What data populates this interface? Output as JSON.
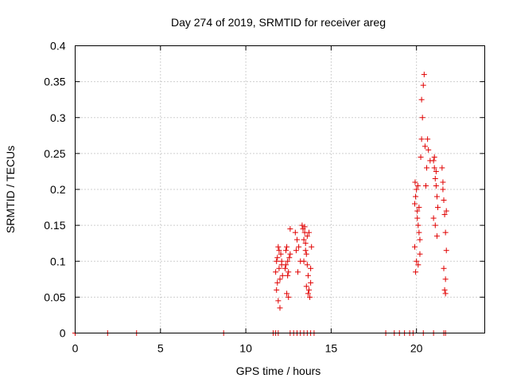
{
  "chart_data": {
    "type": "scatter",
    "title": "Day 274 of 2019, SRMTID for receiver areg",
    "xlabel": "GPS time / hours",
    "ylabel": "SRMTID / TECUs",
    "xlim": [
      0,
      24
    ],
    "ylim": [
      0,
      0.4
    ],
    "x_ticks": [
      0,
      5,
      10,
      15,
      20
    ],
    "x_tick_labels": [
      "0",
      "5",
      "10",
      "15",
      "20"
    ],
    "y_ticks": [
      0,
      0.05,
      0.1,
      0.15,
      0.2,
      0.25,
      0.3,
      0.35,
      0.4
    ],
    "y_tick_labels": [
      "0",
      "0.05",
      "0.1",
      "0.15",
      "0.2",
      "0.25",
      "0.3",
      "0.35",
      "0.4"
    ],
    "grid": true,
    "marker": "+",
    "color": "#e00000",
    "series": [
      {
        "name": "SRMTID",
        "x": [
          0.0,
          1.9,
          3.6,
          8.7,
          11.6,
          11.75,
          11.9,
          12.6,
          12.8,
          13.0,
          13.2,
          13.4,
          13.6,
          13.8,
          14.0,
          18.2,
          18.7,
          19.0,
          19.3,
          19.6,
          19.8,
          20.4,
          21.0,
          21.6,
          21.7,
          11.75,
          11.8,
          11.85,
          11.9,
          11.95,
          12.0,
          12.05,
          12.1,
          12.15,
          11.8,
          11.9,
          12.0,
          11.85,
          11.95,
          12.1,
          12.3,
          12.35,
          12.4,
          12.45,
          12.5,
          12.55,
          12.6,
          12.4,
          12.5,
          12.45,
          12.35,
          12.6,
          12.9,
          13.0,
          13.1,
          13.2,
          13.05,
          12.95,
          13.3,
          13.35,
          13.4,
          13.45,
          13.5,
          13.55,
          13.6,
          13.65,
          13.7,
          13.75,
          13.8,
          13.85,
          13.4,
          13.5,
          13.6,
          13.7,
          13.8,
          13.55,
          13.65,
          13.45,
          19.9,
          19.95,
          20.0,
          20.05,
          20.1,
          20.15,
          19.9,
          20.0,
          20.1,
          20.2,
          19.95,
          20.05,
          20.15,
          20.2,
          19.92,
          20.08,
          20.25,
          20.3,
          20.35,
          20.3,
          20.4,
          20.45,
          20.5,
          20.6,
          20.55,
          20.7,
          20.8,
          20.65,
          21.0,
          21.05,
          21.1,
          21.15,
          21.2,
          21.25,
          21.0,
          21.1,
          21.2,
          21.05,
          21.15,
          21.5,
          21.55,
          21.6,
          21.65,
          21.7,
          21.75,
          21.6,
          21.7,
          21.65,
          21.55,
          21.75,
          21.7
        ],
        "y": [
          0,
          0,
          0,
          0,
          0,
          0,
          0,
          0,
          0,
          0,
          0,
          0,
          0,
          0,
          0,
          0,
          0,
          0,
          0,
          0,
          0,
          0,
          0,
          0,
          0,
          0.085,
          0.1,
          0.07,
          0.12,
          0.09,
          0.075,
          0.11,
          0.095,
          0.08,
          0.06,
          0.045,
          0.035,
          0.105,
          0.115,
          0.1,
          0.09,
          0.115,
          0.12,
          0.1,
          0.085,
          0.105,
          0.145,
          0.055,
          0.05,
          0.08,
          0.095,
          0.11,
          0.14,
          0.13,
          0.12,
          0.1,
          0.085,
          0.115,
          0.15,
          0.145,
          0.13,
          0.14,
          0.125,
          0.11,
          0.095,
          0.08,
          0.06,
          0.05,
          0.07,
          0.12,
          0.1,
          0.115,
          0.135,
          0.14,
          0.09,
          0.065,
          0.055,
          0.148,
          0.18,
          0.19,
          0.2,
          0.16,
          0.15,
          0.14,
          0.12,
          0.1,
          0.095,
          0.11,
          0.085,
          0.17,
          0.175,
          0.13,
          0.21,
          0.205,
          0.245,
          0.27,
          0.3,
          0.325,
          0.345,
          0.36,
          0.26,
          0.23,
          0.205,
          0.255,
          0.24,
          0.27,
          0.24,
          0.23,
          0.215,
          0.205,
          0.19,
          0.175,
          0.16,
          0.15,
          0.135,
          0.245,
          0.225,
          0.23,
          0.21,
          0.185,
          0.165,
          0.14,
          0.115,
          0.09,
          0.075,
          0.06,
          0.2,
          0.17,
          0.055
        ]
      }
    ]
  }
}
